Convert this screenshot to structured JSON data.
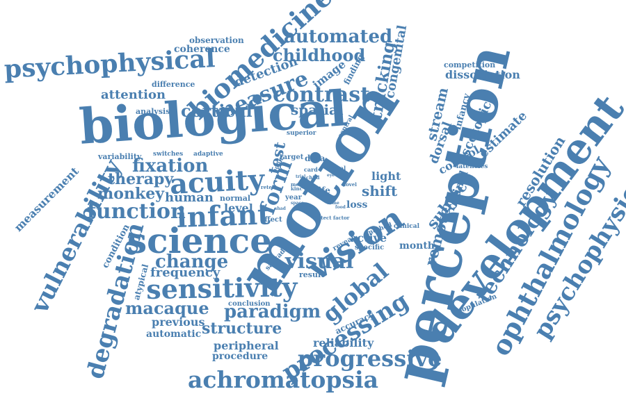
{
  "color": "#4a7fb0",
  "words": [
    "biological",
    "motion",
    "perception",
    "development",
    "psychophysical",
    "biomedicine",
    "science",
    "vision",
    "acuity",
    "infant",
    "sensitivity",
    "achromatopsia",
    "progressive",
    "ophthalmology",
    "psychophysic",
    "technology",
    "processing",
    "global",
    "visual",
    "function",
    "vulnerability",
    "degradation",
    "contrast",
    "automated",
    "childhood",
    "measure",
    "cortical",
    "spatial",
    "fixation",
    "therapy",
    "monkey",
    "human",
    "change",
    "frequency",
    "macaque",
    "paradigm",
    "structure",
    "previous",
    "automatic",
    "peripheral",
    "procedure",
    "reliability",
    "accuracy",
    "tracking",
    "congenital",
    "dissociation",
    "competition",
    "stream",
    "infancy",
    "scotopic",
    "estimate",
    "resolution",
    "dorsal",
    "control",
    "retinal",
    "remote",
    "subject",
    "light",
    "shift",
    "loss",
    "active",
    "month",
    "reveal",
    "specific",
    "form",
    "test",
    "attention",
    "difference",
    "detection",
    "image",
    "finding",
    "coherence",
    "observation",
    "analysis",
    "variability",
    "switches",
    "adaptive",
    "measurement",
    "condition",
    "atypical",
    "level",
    "normal",
    "effect",
    "saccadic",
    "year",
    "life",
    "data",
    "target",
    "adult",
    "superior",
    "central",
    "latencies",
    "population",
    "method",
    "clinical",
    "result",
    "conclusion",
    "detect factor",
    "kinc",
    "card",
    "signal",
    "novel",
    "mood",
    "retest",
    "child",
    "trial",
    "come",
    "shad",
    "food",
    "time",
    "space",
    "more",
    "eye"
  ]
}
